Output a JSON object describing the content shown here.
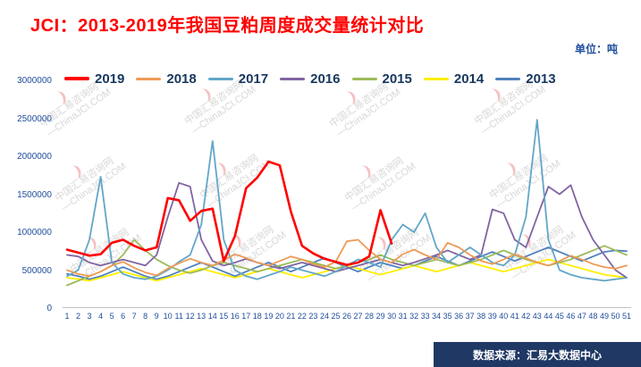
{
  "page": {
    "title": "JCI：2013-2019年我国豆粕周度成交量统计对比",
    "unit_label": "单位：吨",
    "source_label": "数据来源：汇易大数据中心",
    "watermark": {
      "line1": "中国汇易咨询网",
      "line2": "—ChinaJCI.COM"
    },
    "colors": {
      "title_text": "#FF0000",
      "axis_text": "#1F4E9C",
      "legend_text": "#17375E",
      "source_bg": "#1F3864",
      "source_text": "#FFFFFF",
      "axis_line": "#c0c0c0"
    }
  },
  "chart_data": {
    "type": "line",
    "title": "JCI：2013-2019年我国豆粕周度成交量统计对比",
    "unit": "吨",
    "xlabel": "",
    "ylabel": "",
    "ylim": [
      0,
      3000000
    ],
    "yticks": [
      0,
      500000,
      1000000,
      1500000,
      2000000,
      2500000,
      3000000
    ],
    "grid": false,
    "legend_position": "top",
    "x": [
      1,
      2,
      3,
      4,
      5,
      6,
      7,
      8,
      9,
      10,
      11,
      12,
      13,
      14,
      15,
      16,
      17,
      18,
      19,
      20,
      21,
      22,
      23,
      24,
      25,
      26,
      27,
      28,
      29,
      30,
      31,
      32,
      33,
      34,
      35,
      36,
      37,
      38,
      39,
      40,
      41,
      42,
      43,
      44,
      45,
      46,
      47,
      48,
      49,
      50,
      51
    ],
    "series": [
      {
        "name": "2019",
        "color": "#FF0000",
        "values": [
          770000,
          730000,
          690000,
          710000,
          860000,
          900000,
          820000,
          760000,
          800000,
          1450000,
          1420000,
          1150000,
          1280000,
          1310000,
          620000,
          950000,
          1580000,
          1720000,
          1930000,
          1880000,
          1270000,
          820000,
          720000,
          650000,
          610000,
          570000,
          600000,
          680000,
          1290000,
          850000,
          null,
          null,
          null,
          null,
          null,
          null,
          null,
          null,
          null,
          null,
          null,
          null,
          null,
          null,
          null,
          null,
          null,
          null,
          null,
          null,
          null
        ]
      },
      {
        "name": "2018",
        "color": "#ED9B56",
        "values": [
          500000,
          450000,
          420000,
          480000,
          560000,
          610000,
          530000,
          470000,
          430000,
          520000,
          590000,
          650000,
          600000,
          560000,
          630000,
          710000,
          660000,
          600000,
          560000,
          620000,
          680000,
          640000,
          580000,
          540000,
          610000,
          880000,
          900000,
          760000,
          640000,
          600000,
          710000,
          770000,
          700000,
          640000,
          860000,
          800000,
          700000,
          620000,
          580000,
          640000,
          710000,
          660000,
          600000,
          560000,
          620000,
          690000,
          640000,
          580000,
          540000,
          520000,
          560000
        ]
      },
      {
        "name": "2017",
        "color": "#62A6C7",
        "values": [
          420000,
          500000,
          900000,
          1730000,
          600000,
          450000,
          400000,
          380000,
          420000,
          500000,
          610000,
          700000,
          1100000,
          2200000,
          900000,
          500000,
          420000,
          380000,
          430000,
          480000,
          540000,
          500000,
          460000,
          420000,
          480000,
          560000,
          640000,
          600000,
          540000,
          900000,
          1100000,
          1000000,
          1250000,
          800000,
          600000,
          700000,
          800000,
          700000,
          600000,
          560000,
          700000,
          1200000,
          2480000,
          900000,
          500000,
          440000,
          400000,
          380000,
          360000,
          380000,
          400000
        ]
      },
      {
        "name": "2016",
        "color": "#8064A2",
        "values": [
          700000,
          680000,
          600000,
          560000,
          600000,
          640000,
          600000,
          560000,
          700000,
          1200000,
          1650000,
          1600000,
          900000,
          620000,
          560000,
          600000,
          650000,
          600000,
          560000,
          520000,
          560000,
          600000,
          560000,
          520000,
          480000,
          520000,
          560000,
          600000,
          640000,
          600000,
          560000,
          600000,
          650000,
          700000,
          760000,
          700000,
          640000,
          700000,
          1300000,
          1250000,
          900000,
          800000,
          1200000,
          1600000,
          1500000,
          1620000,
          1200000,
          900000,
          700000,
          500000,
          400000
        ]
      },
      {
        "name": "2015",
        "color": "#9BBB59",
        "values": [
          300000,
          360000,
          420000,
          480000,
          560000,
          700000,
          900000,
          760000,
          640000,
          560000,
          500000,
          460000,
          500000,
          560000,
          600000,
          560000,
          520000,
          480000,
          520000,
          560000,
          600000,
          640000,
          600000,
          560000,
          520000,
          560000,
          600000,
          640000,
          700000,
          640000,
          600000,
          560000,
          600000,
          640000,
          600000,
          560000,
          600000,
          640000,
          700000,
          760000,
          700000,
          640000,
          600000,
          560000,
          600000,
          640000,
          700000,
          760000,
          820000,
          760000,
          700000
        ]
      },
      {
        "name": "2014",
        "color": "#FFEE00",
        "values": [
          400000,
          380000,
          360000,
          400000,
          440000,
          480000,
          440000,
          400000,
          360000,
          400000,
          440000,
          480000,
          520000,
          480000,
          440000,
          400000,
          440000,
          480000,
          520000,
          480000,
          440000,
          400000,
          440000,
          480000,
          520000,
          560000,
          520000,
          480000,
          440000,
          480000,
          520000,
          560000,
          520000,
          480000,
          520000,
          560000,
          600000,
          560000,
          520000,
          480000,
          520000,
          560000,
          600000,
          640000,
          600000,
          560000,
          520000,
          480000,
          440000,
          420000,
          400000
        ]
      },
      {
        "name": "2013",
        "color": "#4F81BD",
        "values": [
          450000,
          420000,
          380000,
          420000,
          480000,
          540000,
          480000,
          420000,
          380000,
          420000,
          480000,
          540000,
          600000,
          540000,
          480000,
          420000,
          480000,
          540000,
          600000,
          540000,
          480000,
          540000,
          600000,
          660000,
          600000,
          540000,
          480000,
          540000,
          600000,
          560000,
          520000,
          560000,
          620000,
          680000,
          620000,
          560000,
          620000,
          680000,
          740000,
          680000,
          620000,
          680000,
          740000,
          800000,
          740000,
          680000,
          620000,
          680000,
          740000,
          760000,
          750000
        ]
      }
    ]
  }
}
